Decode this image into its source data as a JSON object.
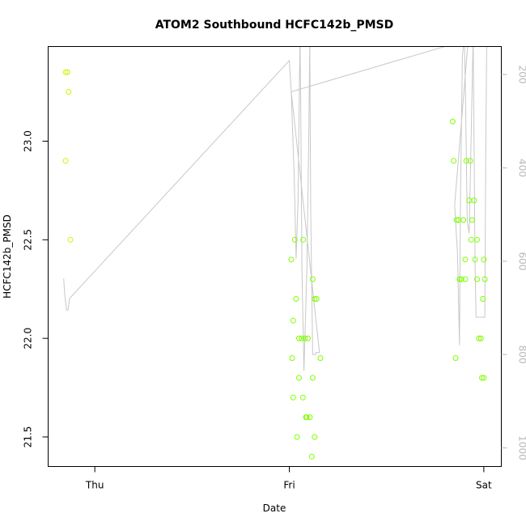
{
  "chart_data": {
    "type": "scatter",
    "title": "ATOM2 Southbound HCFC142b_PMSD",
    "xlabel": "Date",
    "ylabel": "HCFC142b_PMSD",
    "x_axis": {
      "range": [
        -0.24,
        2.09
      ],
      "ticks": [
        {
          "value": 0,
          "label": "Thu"
        },
        {
          "value": 1,
          "label": "Fri"
        },
        {
          "value": 2,
          "label": "Sat"
        }
      ]
    },
    "y_axis_left": {
      "range": [
        21.35,
        23.48
      ],
      "ticks": [
        {
          "value": 21.5,
          "label": "21.5"
        },
        {
          "value": 22.0,
          "label": "22.0"
        },
        {
          "value": 22.5,
          "label": "22.5"
        },
        {
          "value": 23.0,
          "label": "23.0"
        }
      ]
    },
    "y_axis_right": {
      "range": [
        1040,
        140
      ],
      "ticks": [
        {
          "value": 200,
          "label": "200"
        },
        {
          "value": 400,
          "label": "400"
        },
        {
          "value": 600,
          "label": "600"
        },
        {
          "value": 800,
          "label": "800"
        },
        {
          "value": 1000,
          "label": "1000"
        }
      ]
    },
    "grid": false,
    "colors": {
      "points": "#7fff00",
      "points_early": "#d4f000",
      "line": "#c8c8c8",
      "right_axis": "#b8b8b8"
    },
    "series": [
      {
        "kind": "points",
        "axis": "left",
        "points": [
          [
            -0.15,
            23.35
          ],
          [
            -0.14,
            23.35
          ],
          [
            -0.135,
            23.25
          ],
          [
            -0.15,
            22.9
          ],
          [
            -0.125,
            22.5
          ],
          [
            1.01,
            22.4
          ],
          [
            1.02,
            22.09
          ],
          [
            1.028,
            22.5
          ],
          [
            1.035,
            22.2
          ],
          [
            1.05,
            22.0
          ],
          [
            1.063,
            22.0
          ],
          [
            1.071,
            22.5
          ],
          [
            1.08,
            22.0
          ],
          [
            1.095,
            22.0
          ],
          [
            1.12,
            22.3
          ],
          [
            1.13,
            22.2
          ],
          [
            1.14,
            22.2
          ],
          [
            1.16,
            21.9
          ],
          [
            1.015,
            21.9
          ],
          [
            1.02,
            21.7
          ],
          [
            1.05,
            21.8
          ],
          [
            1.07,
            21.7
          ],
          [
            1.085,
            21.6
          ],
          [
            1.09,
            21.6
          ],
          [
            1.105,
            21.6
          ],
          [
            1.04,
            21.5
          ],
          [
            1.13,
            21.5
          ],
          [
            1.12,
            21.8
          ],
          [
            1.115,
            21.4
          ],
          [
            1.84,
            23.1
          ],
          [
            1.845,
            22.9
          ],
          [
            1.855,
            21.9
          ],
          [
            1.86,
            22.6
          ],
          [
            1.87,
            22.6
          ],
          [
            1.875,
            22.3
          ],
          [
            1.885,
            22.3
          ],
          [
            1.895,
            22.6
          ],
          [
            1.905,
            22.4
          ],
          [
            1.905,
            22.3
          ],
          [
            1.91,
            22.9
          ],
          [
            1.925,
            22.7
          ],
          [
            1.93,
            22.9
          ],
          [
            1.935,
            22.5
          ],
          [
            1.94,
            22.6
          ],
          [
            1.95,
            22.7
          ],
          [
            1.955,
            22.4
          ],
          [
            1.965,
            22.5
          ],
          [
            1.965,
            22.3
          ],
          [
            1.975,
            22.0
          ],
          [
            1.985,
            22.0
          ],
          [
            1.99,
            21.8
          ],
          [
            1.995,
            22.2
          ],
          [
            2.0,
            21.8
          ],
          [
            2.005,
            22.3
          ],
          [
            2.0,
            22.4
          ]
        ]
      },
      {
        "kind": "line",
        "axis": "right",
        "points": [
          [
            -0.16,
            637
          ],
          [
            -0.155,
            670
          ],
          [
            -0.145,
            705
          ],
          [
            -0.138,
            705
          ],
          [
            -0.13,
            680
          ],
          [
            1.0,
            170
          ],
          [
            1.01,
            237
          ],
          [
            1.025,
            415
          ],
          [
            1.035,
            595
          ],
          [
            1.045,
            470
          ],
          [
            1.055,
            120
          ],
          [
            1.06,
            315
          ],
          [
            1.065,
            615
          ],
          [
            1.075,
            835
          ],
          [
            1.09,
            620
          ],
          [
            1.1,
            330
          ],
          [
            1.105,
            130
          ],
          [
            1.11,
            500
          ],
          [
            1.12,
            800
          ],
          [
            1.135,
            800
          ],
          [
            1.135,
            796
          ],
          [
            1.155,
            796
          ],
          [
            1.01,
            237
          ],
          [
            1.92,
            125
          ],
          [
            1.85,
            480
          ],
          [
            1.865,
            585
          ],
          [
            1.875,
            780
          ],
          [
            1.88,
            470
          ],
          [
            1.89,
            160
          ],
          [
            1.9,
            120
          ],
          [
            1.905,
            220
          ],
          [
            1.915,
            515
          ],
          [
            1.925,
            540
          ],
          [
            1.945,
            120
          ],
          [
            1.955,
            615
          ],
          [
            1.96,
            720
          ],
          [
            1.99,
            720
          ],
          [
            2.005,
            720
          ],
          [
            2.01,
            360
          ],
          [
            2.015,
            120
          ]
        ]
      }
    ]
  }
}
